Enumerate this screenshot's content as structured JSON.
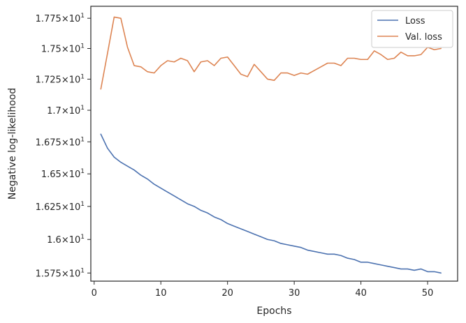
{
  "chart_data": {
    "type": "line",
    "title": "",
    "xlabel": "Epochs",
    "ylabel": "Negative log-likelihood",
    "xlim": [
      -0.5,
      54.5
    ],
    "ylim": [
      15.69,
      17.85
    ],
    "y_scale": "log",
    "grid": false,
    "legend_position": "top-right",
    "x_ticks": [
      0,
      10,
      20,
      30,
      40,
      50
    ],
    "y_ticks": [
      {
        "value": 15.75,
        "mantissa": "1.575",
        "base": "10",
        "exp": "1"
      },
      {
        "value": 16.0,
        "mantissa": "1.6",
        "base": "10",
        "exp": "1"
      },
      {
        "value": 16.25,
        "mantissa": "1.625",
        "base": "10",
        "exp": "1"
      },
      {
        "value": 16.5,
        "mantissa": "1.65",
        "base": "10",
        "exp": "1"
      },
      {
        "value": 16.75,
        "mantissa": "1.675",
        "base": "10",
        "exp": "1"
      },
      {
        "value": 17.0,
        "mantissa": "1.7",
        "base": "10",
        "exp": "1"
      },
      {
        "value": 17.25,
        "mantissa": "1.725",
        "base": "10",
        "exp": "1"
      },
      {
        "value": 17.5,
        "mantissa": "1.75",
        "base": "10",
        "exp": "1"
      },
      {
        "value": 17.75,
        "mantissa": "1.775",
        "base": "10",
        "exp": "1"
      }
    ],
    "x": [
      1,
      2,
      3,
      4,
      5,
      6,
      7,
      8,
      9,
      10,
      11,
      12,
      13,
      14,
      15,
      16,
      17,
      18,
      19,
      20,
      21,
      22,
      23,
      24,
      25,
      26,
      27,
      28,
      29,
      30,
      31,
      32,
      33,
      34,
      35,
      36,
      37,
      38,
      39,
      40,
      41,
      42,
      43,
      44,
      45,
      46,
      47,
      48,
      49,
      50,
      51,
      52
    ],
    "series": [
      {
        "name": "Loss",
        "color": "#4c72b0",
        "values": [
          16.81,
          16.7,
          16.63,
          16.59,
          16.56,
          16.53,
          16.49,
          16.46,
          16.42,
          16.39,
          16.36,
          16.33,
          16.3,
          16.27,
          16.25,
          16.22,
          16.2,
          16.17,
          16.15,
          16.12,
          16.1,
          16.08,
          16.06,
          16.04,
          16.02,
          16.0,
          15.99,
          15.97,
          15.96,
          15.95,
          15.94,
          15.92,
          15.91,
          15.9,
          15.89,
          15.89,
          15.88,
          15.86,
          15.85,
          15.83,
          15.83,
          15.82,
          15.81,
          15.8,
          15.79,
          15.78,
          15.78,
          15.77,
          15.78,
          15.76,
          15.76,
          15.75
        ]
      },
      {
        "name": "Val. loss",
        "color": "#dd8452",
        "values": [
          17.17,
          17.46,
          17.76,
          17.75,
          17.51,
          17.36,
          17.35,
          17.31,
          17.3,
          17.36,
          17.4,
          17.39,
          17.42,
          17.4,
          17.31,
          17.39,
          17.4,
          17.36,
          17.42,
          17.43,
          17.36,
          17.29,
          17.27,
          17.37,
          17.31,
          17.25,
          17.24,
          17.3,
          17.3,
          17.28,
          17.3,
          17.29,
          17.32,
          17.35,
          17.38,
          17.38,
          17.36,
          17.42,
          17.42,
          17.41,
          17.41,
          17.48,
          17.45,
          17.41,
          17.42,
          17.47,
          17.44,
          17.44,
          17.45,
          17.51,
          17.49,
          17.5
        ]
      }
    ]
  }
}
